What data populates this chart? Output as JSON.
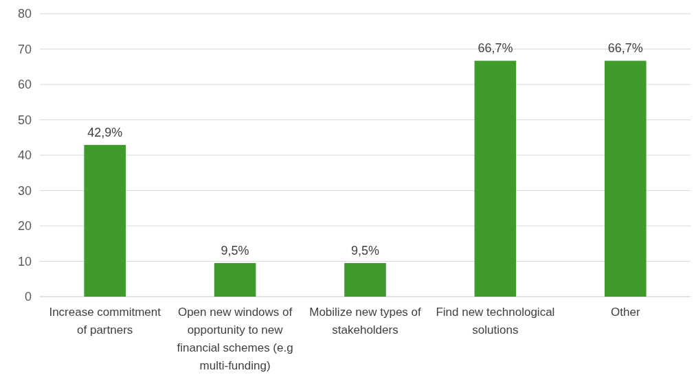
{
  "chart_data": {
    "type": "bar",
    "categories": [
      "Increase commitment of partners",
      "Open new windows of opportunity to new financial schemes (e.g multi-funding)",
      "Mobilize new types of stakeholders",
      "Find new technological solutions",
      "Other"
    ],
    "values": [
      42.9,
      9.5,
      9.5,
      66.7,
      66.7
    ],
    "value_labels": [
      "42,9%",
      "9,5%",
      "9,5%",
      "66,7%",
      "66,7%"
    ],
    "color": "#3f9b2c",
    "ylim": [
      0,
      80
    ],
    "yticks": [
      0,
      10,
      20,
      30,
      40,
      50,
      60,
      70,
      80
    ],
    "grid": "y"
  }
}
